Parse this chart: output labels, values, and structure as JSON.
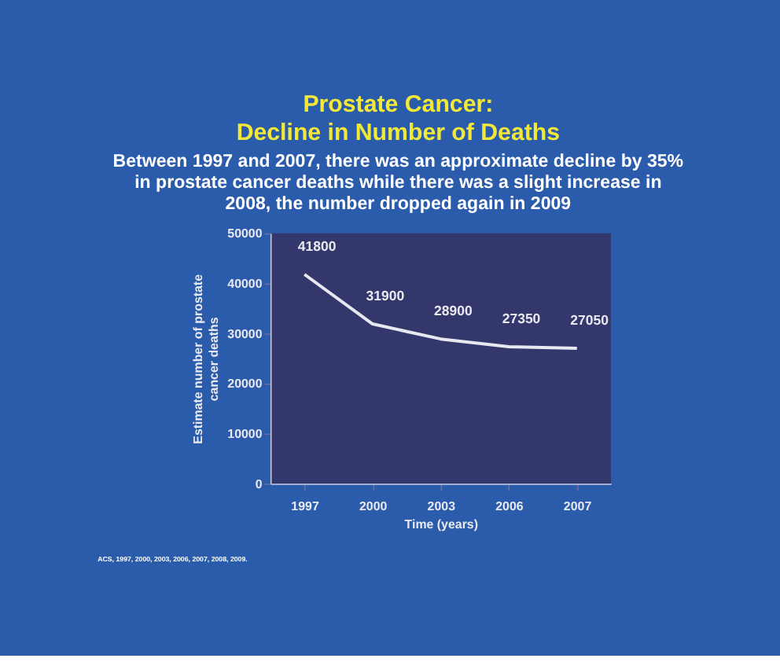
{
  "chart_data": {
    "type": "line",
    "title": "Prostate Cancer:\nDecline in Number of Deaths",
    "subtitle": "Between 1997 and 2007, there was an approximate decline by 35% in prostate cancer deaths while there was a slight increase in 2008, the number dropped again in 2009",
    "xlabel": "Time (years)",
    "ylabel": "Estimate number of prostate cancer deaths",
    "categories": [
      "1997",
      "2000",
      "2003",
      "2006",
      "2007"
    ],
    "series": [
      {
        "color": "#e8e8f0",
        "values": [
          41800,
          31900,
          28900,
          27350,
          27050
        ]
      }
    ],
    "ylim": [
      0,
      50000
    ],
    "yticks": [
      0,
      10000,
      20000,
      30000,
      40000,
      50000
    ],
    "data_labels": true,
    "grid": false,
    "legend": false,
    "marker": "none",
    "line_style": "solid",
    "annotations": [
      "ACS, 1997, 2000, 2003, 2006, 2007, 2008, 2009."
    ]
  }
}
